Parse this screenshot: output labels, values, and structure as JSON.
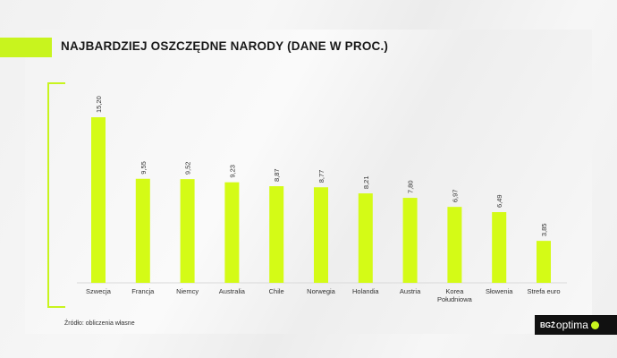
{
  "title": "NAJBARDZIEJ OSZCZĘDNE NARODY (DANE W PROC.)",
  "source": "Źródło: obliczenia własne",
  "logo": {
    "bgz": "BGŻ",
    "optima": "optima"
  },
  "colors": {
    "accent": "#c8f41e",
    "bar": "#d4fb16",
    "text": "#1a1a1a"
  },
  "chart_data": {
    "type": "bar",
    "title": "NAJBARDZIEJ OSZCZĘDNE NARODY (DANE W PROC.)",
    "categories": [
      "Szwecja",
      "Francja",
      "Niemcy",
      "Australia",
      "Chile",
      "Norwegia",
      "Holandia",
      "Austria",
      "Korea Południowa",
      "Słowenia",
      "Strefa euro"
    ],
    "values": [
      15.2,
      9.55,
      9.52,
      9.23,
      8.87,
      8.77,
      8.21,
      7.8,
      6.97,
      6.49,
      3.85
    ],
    "value_labels": [
      "15,20",
      "9,55",
      "9,52",
      "9,23",
      "8,87",
      "8,77",
      "8,21",
      "7,80",
      "6,97",
      "6,49",
      "3,85"
    ],
    "category_labels": [
      [
        "Szwecja"
      ],
      [
        "Francja"
      ],
      [
        "Niemcy"
      ],
      [
        "Australia"
      ],
      [
        "Chile"
      ],
      [
        "Norwegia"
      ],
      [
        "Holandia"
      ],
      [
        "Austria"
      ],
      [
        "Korea",
        "Południowa"
      ],
      [
        "Słowenia"
      ],
      [
        "Strefa euro"
      ]
    ],
    "xlabel": "",
    "ylabel": "",
    "ylim": [
      0,
      15.2
    ],
    "grid": false,
    "legend": "none"
  }
}
